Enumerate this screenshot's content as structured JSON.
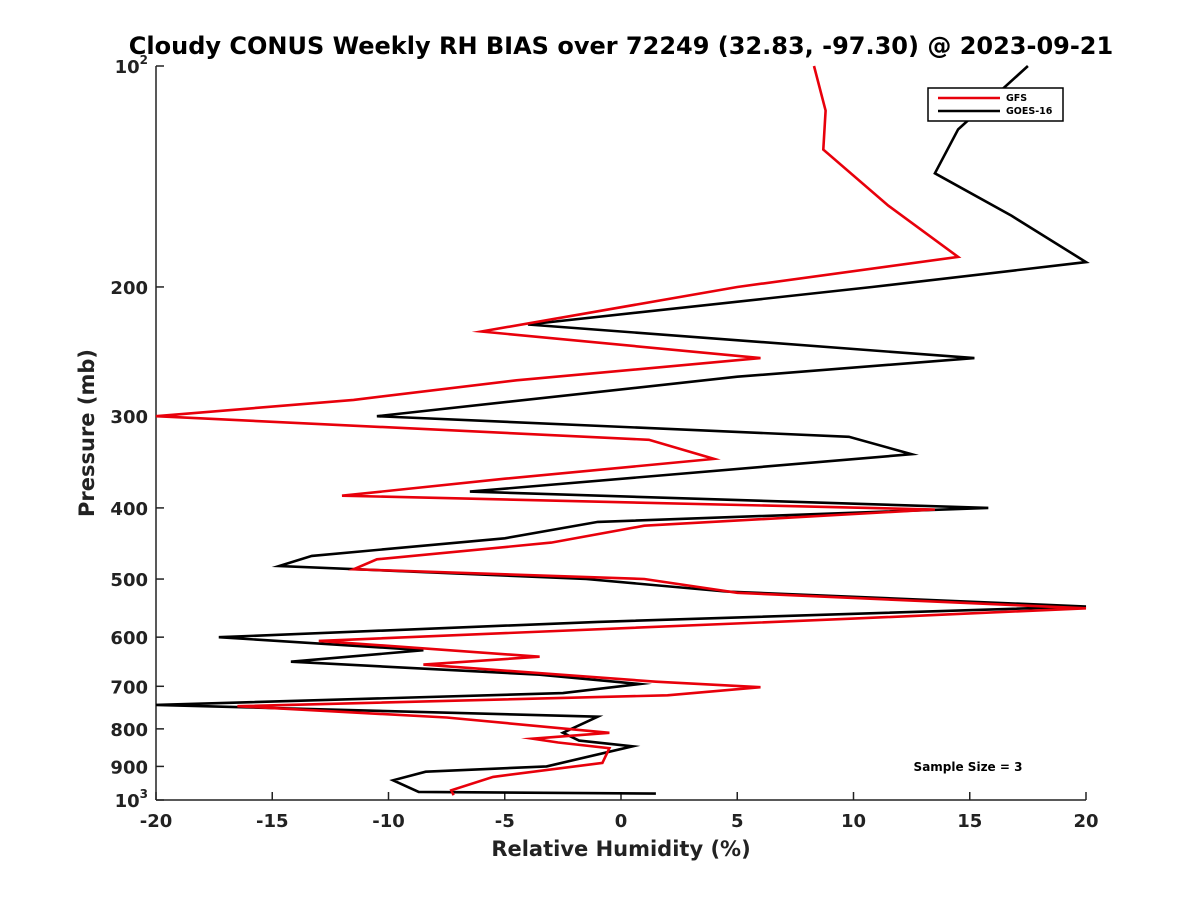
{
  "chart_data": {
    "type": "line",
    "title": "Cloudy CONUS Weekly RH BIAS over 72249 (32.83, -97.30) @ 2023-09-21",
    "xlabel": "Relative Humidity (%)",
    "ylabel": "Pressure (mb)",
    "xlim": [
      -20,
      20
    ],
    "ylim": [
      100,
      1000
    ],
    "y_scale": "log",
    "y_reversed": true,
    "grid": false,
    "legend_position": "top-right",
    "x_ticks": [
      "-20",
      "-15",
      "-10",
      "-5",
      "0",
      "5",
      "10",
      "15",
      "20"
    ],
    "y_ticks": [
      {
        "value": 100,
        "base": "10",
        "exp": "2"
      },
      {
        "value": 200,
        "label": "200"
      },
      {
        "value": 300,
        "label": "300"
      },
      {
        "value": 400,
        "label": "400"
      },
      {
        "value": 500,
        "label": "500"
      },
      {
        "value": 600,
        "label": "600"
      },
      {
        "value": 700,
        "label": "700"
      },
      {
        "value": 800,
        "label": "800"
      },
      {
        "value": 900,
        "label": "900"
      },
      {
        "value": 1000,
        "base": "10",
        "exp": "3"
      }
    ],
    "series": [
      {
        "name": "GFS",
        "color": "#e8000b",
        "x": [
          8.3,
          8.8,
          8.7,
          11.5,
          14.5,
          5.0,
          -6.0,
          6.0,
          -4.5,
          -11.5,
          -20.0,
          1.2,
          4.0,
          -5.0,
          -12.0,
          13.5,
          1.0,
          -3.0,
          -10.5,
          -11.5,
          1.0,
          5.0,
          20.0,
          10.0,
          -13.0,
          -3.5,
          -8.5,
          1.5,
          6.0,
          2.0,
          -16.5,
          -7.5,
          -0.5,
          -3.8,
          -2.7,
          -0.5,
          -0.8,
          -5.5,
          -7.3,
          -7.2
        ],
        "y": [
          100,
          115,
          130,
          155,
          182,
          200,
          230,
          250,
          268,
          285,
          300,
          323,
          343,
          365,
          385,
          402,
          423,
          446,
          470,
          485,
          500,
          522,
          548,
          566,
          607,
          638,
          654,
          690,
          702,
          720,
          745,
          772,
          810,
          825,
          835,
          850,
          890,
          930,
          970,
          985
        ]
      },
      {
        "name": "GOES-16",
        "color": "#000000",
        "x": [
          17.5,
          14.5,
          13.5,
          16.8,
          20.0,
          10.8,
          -4.0,
          15.2,
          5.0,
          -10.5,
          9.8,
          12.5,
          -6.5,
          15.8,
          -1.0,
          -5.0,
          -13.3,
          -14.7,
          -1.5,
          4.5,
          20.0,
          -1.0,
          -17.3,
          -8.5,
          -14.2,
          -3.5,
          0.8,
          -2.5,
          -20.0,
          -1.0,
          -2.5,
          -1.8,
          0.5,
          -3.2,
          -8.4,
          -9.8,
          -8.7,
          1.5
        ],
        "y": [
          100,
          122,
          140,
          160,
          185,
          200,
          225,
          250,
          265,
          300,
          320,
          338,
          380,
          400,
          418,
          440,
          465,
          480,
          500,
          520,
          545,
          572,
          600,
          625,
          648,
          675,
          695,
          715,
          742,
          770,
          810,
          830,
          845,
          900,
          915,
          940,
          975,
          980
        ]
      }
    ],
    "annotations": [
      "Sample Size = 3"
    ]
  }
}
